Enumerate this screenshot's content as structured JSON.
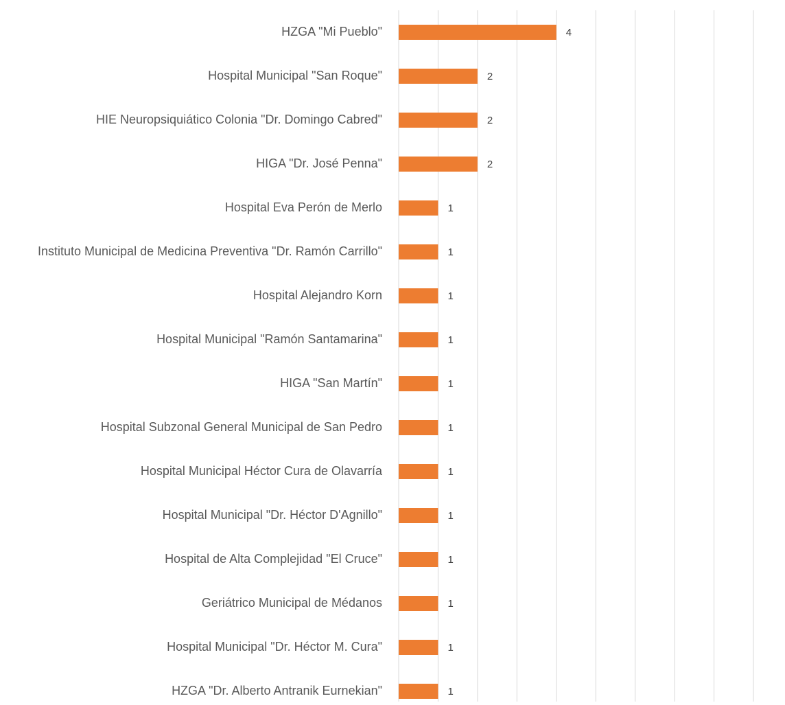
{
  "chart_data": {
    "type": "barh",
    "categories": [
      "HZGA \"Mi Pueblo\"",
      "Hospital Municipal  \"San Roque\"",
      "HIE Neuropsiquiático Colonia \"Dr. Domingo Cabred\"",
      "HIGA \"Dr. José Penna\"",
      "Hospital Eva Perón de Merlo",
      "Instituto Municipal de Medicina Preventiva \"Dr. Ramón Carrillo\"",
      "Hospital Alejandro Korn",
      "Hospital Municipal \"Ramón Santamarina\"",
      "HIGA \"San Martín\"",
      "Hospital Subzonal General Municipal de San Pedro",
      "Hospital Municipal Héctor Cura de Olavarría",
      "Hospital Municipal \"Dr. Héctor D'Agnillo\"",
      "Hospital de Alta Complejidad \"El Cruce\"",
      "Geriátrico Municipal de Médanos",
      "Hospital Municipal \"Dr. Héctor M. Cura\"",
      "HZGA \"Dr. Alberto Antranik Eurnekian\""
    ],
    "values": [
      4,
      2,
      2,
      2,
      1,
      1,
      1,
      1,
      1,
      1,
      1,
      1,
      1,
      1,
      1,
      1
    ],
    "color": "#ed7d31",
    "xlim": [
      0,
      9
    ],
    "xticks": [
      0,
      1,
      2,
      3,
      4,
      5,
      6,
      7,
      8,
      9
    ],
    "grid": true
  }
}
